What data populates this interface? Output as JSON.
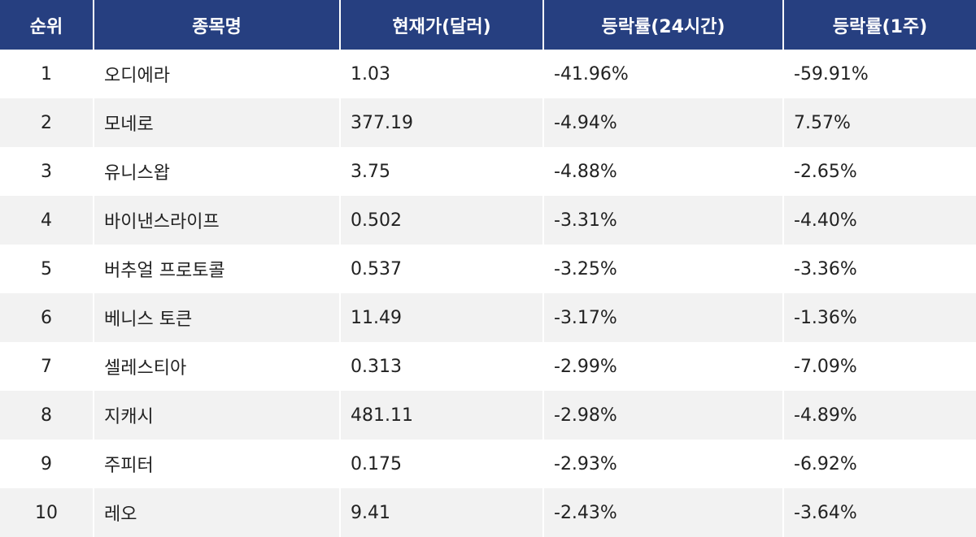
{
  "table": {
    "header": [
      "순위",
      "종목명",
      "현재가(달러)",
      "등락률(24시간)",
      "등락률(1주)"
    ],
    "rows": [
      [
        "1",
        "오디에라",
        "1.03",
        "-41.96%",
        "-59.91%"
      ],
      [
        "2",
        "모네로",
        "377.19",
        "-4.94%",
        "7.57%"
      ],
      [
        "3",
        "유니스왑",
        "3.75",
        "-4.88%",
        "-2.65%"
      ],
      [
        "4",
        "바이낸스라이프",
        "0.502",
        "-3.31%",
        "-4.40%"
      ],
      [
        "5",
        "버추얼 프로토콜",
        "0.537",
        "-3.25%",
        "-3.36%"
      ],
      [
        "6",
        "베니스 토큰",
        "11.49",
        "-3.17%",
        "-1.36%"
      ],
      [
        "7",
        "셀레스티아",
        "0.313",
        "-2.99%",
        "-7.09%"
      ],
      [
        "8",
        "지캐시",
        "481.11",
        "-2.98%",
        "-4.89%"
      ],
      [
        "9",
        "주피터",
        "0.175",
        "-2.93%",
        "-6.92%"
      ],
      [
        "10",
        "레오",
        "9.41",
        "-2.43%",
        "-3.64%"
      ]
    ]
  }
}
